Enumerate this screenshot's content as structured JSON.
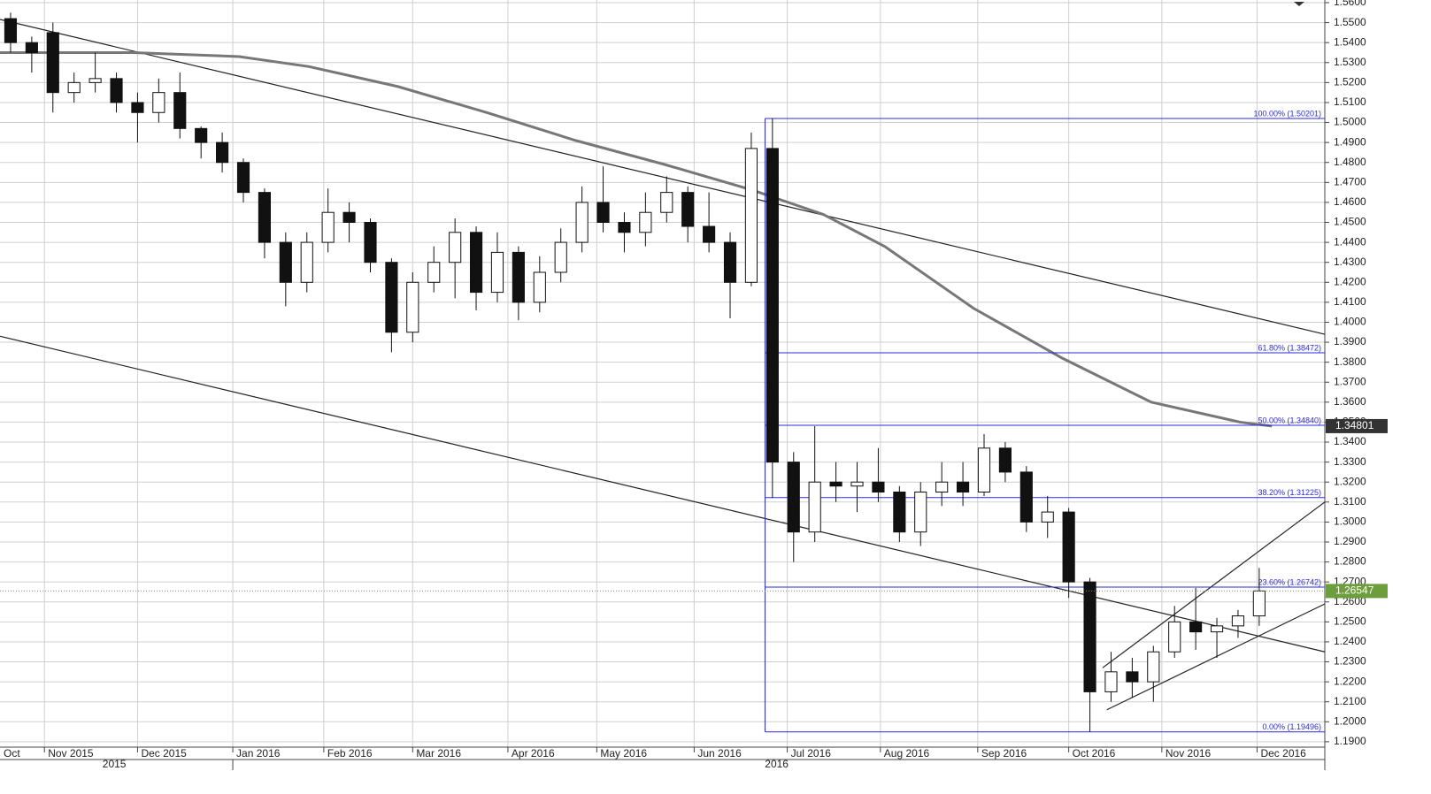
{
  "chart_data": {
    "type": "candlestick",
    "grid": true,
    "up_color": "#ffffff",
    "down_color": "#111111",
    "xlim": [
      0,
      62.6
    ],
    "ylim": [
      1.1873,
      1.56
    ],
    "yticks": [
      {
        "value": 1.19,
        "label": "1.1900"
      },
      {
        "value": 1.2,
        "label": "1.2000"
      },
      {
        "value": 1.21,
        "label": "1.2100"
      },
      {
        "value": 1.22,
        "label": "1.2200"
      },
      {
        "value": 1.23,
        "label": "1.2300"
      },
      {
        "value": 1.24,
        "label": "1.2400"
      },
      {
        "value": 1.25,
        "label": "1.2500"
      },
      {
        "value": 1.26,
        "label": "1.2600"
      },
      {
        "value": 1.27,
        "label": "1.2700"
      },
      {
        "value": 1.28,
        "label": "1.2800"
      },
      {
        "value": 1.29,
        "label": "1.2900"
      },
      {
        "value": 1.3,
        "label": "1.3000"
      },
      {
        "value": 1.31,
        "label": "1.3100"
      },
      {
        "value": 1.32,
        "label": "1.3200"
      },
      {
        "value": 1.33,
        "label": "1.3300"
      },
      {
        "value": 1.34,
        "label": "1.3400"
      },
      {
        "value": 1.35,
        "label": "1.3500"
      },
      {
        "value": 1.36,
        "label": "1.3600"
      },
      {
        "value": 1.37,
        "label": "1.3700"
      },
      {
        "value": 1.38,
        "label": "1.3800"
      },
      {
        "value": 1.39,
        "label": "1.3900"
      },
      {
        "value": 1.4,
        "label": "1.4000"
      },
      {
        "value": 1.41,
        "label": "1.4100"
      },
      {
        "value": 1.42,
        "label": "1.4200"
      },
      {
        "value": 1.43,
        "label": "1.4300"
      },
      {
        "value": 1.44,
        "label": "1.4400"
      },
      {
        "value": 1.45,
        "label": "1.4500"
      },
      {
        "value": 1.46,
        "label": "1.4600"
      },
      {
        "value": 1.47,
        "label": "1.4700"
      },
      {
        "value": 1.48,
        "label": "1.4800"
      },
      {
        "value": 1.49,
        "label": "1.4900"
      },
      {
        "value": 1.5,
        "label": "1.5000"
      },
      {
        "value": 1.51,
        "label": "1.5100"
      },
      {
        "value": 1.52,
        "label": "1.5200"
      },
      {
        "value": 1.53,
        "label": "1.5300"
      },
      {
        "value": 1.54,
        "label": "1.5400"
      },
      {
        "value": 1.55,
        "label": "1.5500"
      },
      {
        "value": 1.56,
        "label": "1.5600"
      }
    ],
    "xticks": [
      {
        "value": -0.2,
        "label": "Oct"
      },
      {
        "value": 2.1,
        "label": "Nov 2015"
      },
      {
        "value": 6.5,
        "label": "Dec 2015"
      },
      {
        "value": 11,
        "label": "Jan 2016"
      },
      {
        "value": 15.3,
        "label": "Feb 2016"
      },
      {
        "value": 19.5,
        "label": "Mar 2016"
      },
      {
        "value": 24,
        "label": "Apr 2016"
      },
      {
        "value": 28.2,
        "label": "May 2016"
      },
      {
        "value": 32.8,
        "label": "Jun 2016"
      },
      {
        "value": 37.2,
        "label": "Jul 2016"
      },
      {
        "value": 41.6,
        "label": "Aug 2016"
      },
      {
        "value": 46.2,
        "label": "Sep 2016"
      },
      {
        "value": 50.5,
        "label": "Oct 2016"
      },
      {
        "value": 54.9,
        "label": "Nov 2016"
      },
      {
        "value": 59.4,
        "label": "Dec 2016"
      }
    ],
    "year_labels": [
      {
        "value": 5.4,
        "label": "2015"
      },
      {
        "value": 36.7,
        "label": "2016"
      }
    ],
    "open": [
      1.552,
      1.54,
      1.545,
      1.515,
      1.52,
      1.522,
      1.51,
      1.505,
      1.515,
      1.497,
      1.49,
      1.48,
      1.465,
      1.44,
      1.42,
      1.44,
      1.455,
      1.45,
      1.43,
      1.395,
      1.42,
      1.43,
      1.445,
      1.415,
      1.435,
      1.41,
      1.425,
      1.44,
      1.46,
      1.45,
      1.445,
      1.455,
      1.465,
      1.448,
      1.44,
      1.42,
      1.487,
      1.33,
      1.295,
      1.32,
      1.318,
      1.32,
      1.315,
      1.295,
      1.315,
      1.32,
      1.315,
      1.337,
      1.325,
      1.3,
      1.305,
      1.27,
      1.215,
      1.225,
      1.22,
      1.235,
      1.25,
      1.245,
      1.248,
      1.253
    ],
    "high": [
      1.555,
      1.543,
      1.55,
      1.525,
      1.535,
      1.525,
      1.515,
      1.522,
      1.525,
      1.498,
      1.495,
      1.482,
      1.467,
      1.445,
      1.445,
      1.467,
      1.46,
      1.452,
      1.432,
      1.425,
      1.438,
      1.452,
      1.448,
      1.445,
      1.438,
      1.433,
      1.447,
      1.468,
      1.478,
      1.455,
      1.465,
      1.473,
      1.468,
      1.465,
      1.445,
      1.495,
      1.502,
      1.335,
      1.348,
      1.33,
      1.33,
      1.337,
      1.318,
      1.32,
      1.33,
      1.33,
      1.344,
      1.34,
      1.328,
      1.313,
      1.307,
      1.272,
      1.235,
      1.232,
      1.238,
      1.258,
      1.267,
      1.252,
      1.256,
      1.277
    ],
    "low": [
      1.535,
      1.525,
      1.505,
      1.51,
      1.515,
      1.505,
      1.49,
      1.5,
      1.492,
      1.482,
      1.475,
      1.46,
      1.432,
      1.408,
      1.415,
      1.435,
      1.44,
      1.425,
      1.385,
      1.39,
      1.415,
      1.412,
      1.406,
      1.41,
      1.401,
      1.405,
      1.42,
      1.435,
      1.445,
      1.435,
      1.438,
      1.45,
      1.44,
      1.435,
      1.402,
      1.418,
      1.312,
      1.28,
      1.29,
      1.31,
      1.305,
      1.31,
      1.29,
      1.288,
      1.308,
      1.308,
      1.313,
      1.32,
      1.295,
      1.292,
      1.262,
      1.195,
      1.21,
      1.212,
      1.21,
      1.232,
      1.236,
      1.232,
      1.242,
      1.248
    ],
    "close": [
      1.54,
      1.535,
      1.515,
      1.52,
      1.522,
      1.51,
      1.505,
      1.515,
      1.497,
      1.49,
      1.48,
      1.465,
      1.44,
      1.42,
      1.44,
      1.455,
      1.45,
      1.43,
      1.395,
      1.42,
      1.43,
      1.445,
      1.415,
      1.435,
      1.41,
      1.425,
      1.44,
      1.46,
      1.45,
      1.445,
      1.455,
      1.465,
      1.448,
      1.44,
      1.42,
      1.487,
      1.33,
      1.295,
      1.32,
      1.318,
      1.32,
      1.315,
      1.295,
      1.315,
      1.32,
      1.315,
      1.337,
      1.325,
      1.3,
      1.305,
      1.27,
      1.215,
      1.225,
      1.22,
      1.235,
      1.25,
      1.245,
      1.248,
      1.253,
      1.2655
    ],
    "moving_average": {
      "color": "#777777",
      "x": [
        0,
        6.3,
        11.3,
        14.6,
        18.8,
        23,
        27.2,
        31.4,
        35.6,
        38.9,
        41.8,
        46,
        50.2,
        54.4,
        58.6,
        60.1
      ],
      "values": [
        1.535,
        1.535,
        1.533,
        1.528,
        1.518,
        1.505,
        1.491,
        1.479,
        1.466,
        1.454,
        1.438,
        1.407,
        1.382,
        1.36,
        1.35,
        1.348
      ]
    },
    "trendlines": [
      {
        "x": [
          0,
          62.6
        ],
        "values": [
          1.5516,
          1.394
        ]
      },
      {
        "x": [
          0,
          62.6
        ],
        "values": [
          1.393,
          1.235
        ]
      },
      {
        "x": [
          52.1,
          62.6
        ],
        "values": [
          1.227,
          1.31
        ]
      },
      {
        "x": [
          52.3,
          62.6
        ],
        "values": [
          1.206,
          1.259
        ]
      }
    ],
    "fib_start": 36.15,
    "fib_color": "#2b2bd6",
    "fib_levels": [
      {
        "value": 1.50201,
        "label": "100.00% (1.50201)"
      },
      {
        "value": 1.38472,
        "label": "61.80% (1.38472)"
      },
      {
        "value": 1.3484,
        "label": "50.00% (1.34840)"
      },
      {
        "value": 1.31225,
        "label": "38.20% (1.31225)"
      },
      {
        "value": 1.26742,
        "label": "23.60% (1.26742)"
      },
      {
        "value": 1.19496,
        "label": "0.00% (1.19496)"
      }
    ],
    "price_tags": [
      {
        "value": 1.34801,
        "color": "#333333"
      },
      {
        "value": 1.26547,
        "color": "#6e9e3c"
      }
    ]
  }
}
